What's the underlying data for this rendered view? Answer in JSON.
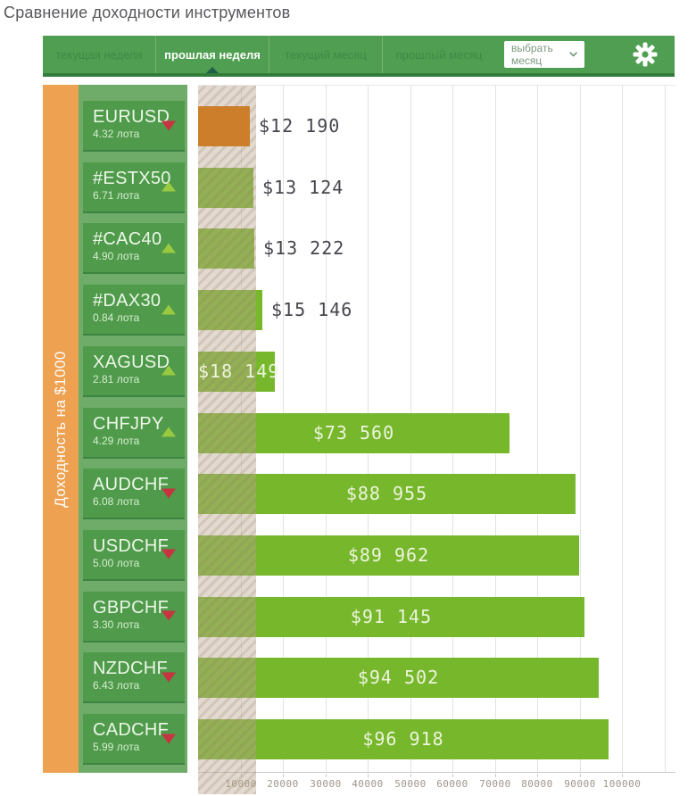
{
  "title": "Сравнение доходности инструментов",
  "toolbar": {
    "tabs": [
      {
        "label": "текущая неделя",
        "active": false
      },
      {
        "label": "прошлая неделя",
        "active": true
      },
      {
        "label": "текущий месяц",
        "active": false
      },
      {
        "label": "прошлый месяц",
        "active": false
      }
    ],
    "month_select_label": "выбрать месяц",
    "gear_icon": "settings-gear-icon"
  },
  "chart_data": {
    "type": "bar",
    "orientation": "horizontal",
    "title": "Сравнение доходности инструментов",
    "ylabel": "Доходность на $1000",
    "xlabel": "",
    "xlim": [
      0,
      112500
    ],
    "grid": true,
    "x_ticks": [
      10000,
      20000,
      30000,
      40000,
      50000,
      60000,
      70000,
      80000,
      90000,
      100000
    ],
    "x_tick_labels": [
      "10000",
      "20000",
      "30000",
      "40000",
      "50000",
      "60000",
      "70000",
      "80000",
      "90000",
      "100000"
    ],
    "categories": [
      "EURUSD",
      "#ESTX50",
      "#CAC40",
      "#DAX30",
      "XAGUSD",
      "CHFJPY",
      "AUDCHF",
      "USDCHF",
      "GBPCHF",
      "NZDCHF",
      "CADCHF"
    ],
    "values": [
      12190,
      13124,
      13222,
      15146,
      18149,
      73560,
      88955,
      89962,
      91145,
      94502,
      96918
    ],
    "instruments": [
      {
        "symbol": "EURUSD",
        "lots": "4.32 лота",
        "trend": "down",
        "value": 12190,
        "value_label": "$12 190",
        "bar_color": "orange"
      },
      {
        "symbol": "#ESTX50",
        "lots": "6.71 лота",
        "trend": "up",
        "value": 13124,
        "value_label": "$13 124",
        "bar_color": "green"
      },
      {
        "symbol": "#CAC40",
        "lots": "4.90 лота",
        "trend": "up",
        "value": 13222,
        "value_label": "$13 222",
        "bar_color": "green"
      },
      {
        "symbol": "#DAX30",
        "lots": "0.84 лота",
        "trend": "up",
        "value": 15146,
        "value_label": "$15 146",
        "bar_color": "green"
      },
      {
        "symbol": "XAGUSD",
        "lots": "2.81 лота",
        "trend": "up",
        "value": 18149,
        "value_label": "$18 149",
        "bar_color": "green"
      },
      {
        "symbol": "CHFJPY",
        "lots": "4.29 лота",
        "trend": "up",
        "value": 73560,
        "value_label": "$73 560",
        "bar_color": "green"
      },
      {
        "symbol": "AUDCHF",
        "lots": "6.08 лота",
        "trend": "down",
        "value": 88955,
        "value_label": "$88 955",
        "bar_color": "green"
      },
      {
        "symbol": "USDCHF",
        "lots": "5.00 лота",
        "trend": "down",
        "value": 89962,
        "value_label": "$89 962",
        "bar_color": "green"
      },
      {
        "symbol": "GBPCHF",
        "lots": "3.30 лота",
        "trend": "down",
        "value": 91145,
        "value_label": "$91 145",
        "bar_color": "green"
      },
      {
        "symbol": "NZDCHF",
        "lots": "6.43 лота",
        "trend": "down",
        "value": 94502,
        "value_label": "$94 502",
        "bar_color": "green"
      },
      {
        "symbol": "CADCHF",
        "lots": "5.99 лота",
        "trend": "down",
        "value": 96918,
        "value_label": "$96 918",
        "bar_color": "green"
      }
    ],
    "legend": false,
    "min_highlight_band": {
      "covers_value": 13700,
      "style": "hatched-beige"
    }
  },
  "colors": {
    "toolbar_green": "#4f9e51",
    "toolbar_border": "#317c3a",
    "bar_green": "#77b72c",
    "bar_orange": "#cd7e2b",
    "axis_strip_orange": "#eea150",
    "panel_green": "#4f9a4b",
    "column_green": "#6fac69",
    "trend_up": "#99c93e",
    "trend_down": "#c93240"
  }
}
